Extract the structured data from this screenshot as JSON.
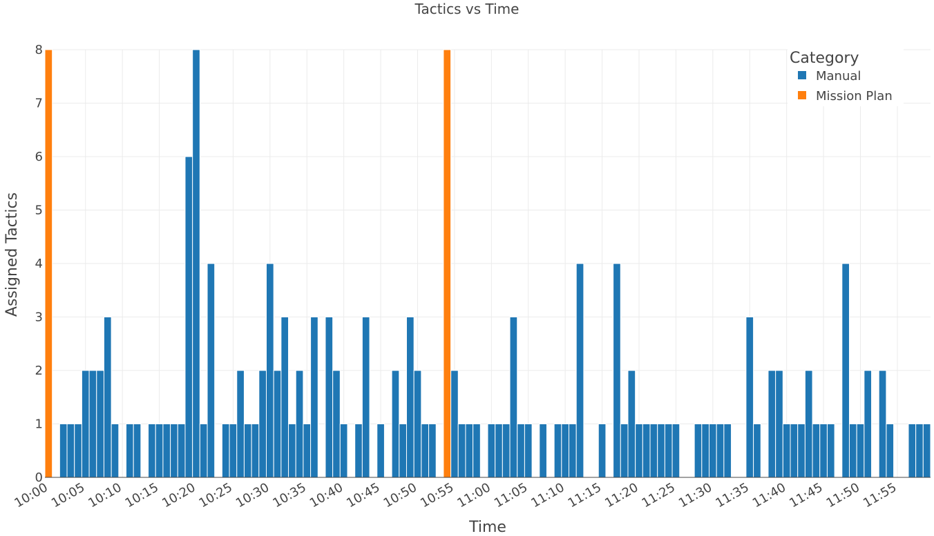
{
  "chart_data": {
    "type": "bar",
    "title": "Tactics vs Time",
    "xlabel": "Time",
    "ylabel": "Assigned Tactics",
    "ylim": [
      0,
      8
    ],
    "yticks": [
      0,
      1,
      2,
      3,
      4,
      5,
      6,
      7,
      8
    ],
    "xlim_minutes": [
      0,
      119
    ],
    "xticks": [
      "10:00",
      "10:05",
      "10:10",
      "10:15",
      "10:20",
      "10:25",
      "10:30",
      "10:35",
      "10:40",
      "10:45",
      "10:50",
      "10:55",
      "11:00",
      "11:05",
      "11:10",
      "11:15",
      "11:20",
      "11:25",
      "11:30",
      "11:35",
      "11:40",
      "11:45",
      "11:50",
      "11:55"
    ],
    "grid": true,
    "legend": {
      "title": "Category",
      "placement": "top-right",
      "entries": [
        {
          "name": "Manual",
          "color": "#1f77b4"
        },
        {
          "name": "Mission Plan",
          "color": "#ff7f0e"
        }
      ]
    },
    "series": [
      {
        "name": "Manual",
        "color": "#1f77b4",
        "points": [
          [
            "10:02",
            1
          ],
          [
            "10:03",
            1
          ],
          [
            "10:04",
            1
          ],
          [
            "10:05",
            2
          ],
          [
            "10:06",
            2
          ],
          [
            "10:07",
            2
          ],
          [
            "10:08",
            3
          ],
          [
            "10:09",
            1
          ],
          [
            "10:11",
            1
          ],
          [
            "10:12",
            1
          ],
          [
            "10:14",
            1
          ],
          [
            "10:15",
            1
          ],
          [
            "10:16",
            1
          ],
          [
            "10:17",
            1
          ],
          [
            "10:18",
            1
          ],
          [
            "10:19",
            6
          ],
          [
            "10:20",
            8
          ],
          [
            "10:21",
            1
          ],
          [
            "10:22",
            4
          ],
          [
            "10:24",
            1
          ],
          [
            "10:25",
            1
          ],
          [
            "10:26",
            2
          ],
          [
            "10:27",
            1
          ],
          [
            "10:28",
            1
          ],
          [
            "10:29",
            2
          ],
          [
            "10:30",
            4
          ],
          [
            "10:31",
            2
          ],
          [
            "10:32",
            3
          ],
          [
            "10:33",
            1
          ],
          [
            "10:34",
            2
          ],
          [
            "10:35",
            1
          ],
          [
            "10:36",
            3
          ],
          [
            "10:38",
            3
          ],
          [
            "10:39",
            2
          ],
          [
            "10:40",
            1
          ],
          [
            "10:42",
            1
          ],
          [
            "10:43",
            3
          ],
          [
            "10:45",
            1
          ],
          [
            "10:47",
            2
          ],
          [
            "10:48",
            1
          ],
          [
            "10:49",
            3
          ],
          [
            "10:50",
            2
          ],
          [
            "10:51",
            1
          ],
          [
            "10:52",
            1
          ],
          [
            "10:55",
            2
          ],
          [
            "10:56",
            1
          ],
          [
            "10:57",
            1
          ],
          [
            "10:58",
            1
          ],
          [
            "11:00",
            1
          ],
          [
            "11:01",
            1
          ],
          [
            "11:02",
            1
          ],
          [
            "11:03",
            3
          ],
          [
            "11:04",
            1
          ],
          [
            "11:05",
            1
          ],
          [
            "11:07",
            1
          ],
          [
            "11:09",
            1
          ],
          [
            "11:10",
            1
          ],
          [
            "11:11",
            1
          ],
          [
            "11:12",
            4
          ],
          [
            "11:15",
            1
          ],
          [
            "11:17",
            4
          ],
          [
            "11:18",
            1
          ],
          [
            "11:19",
            2
          ],
          [
            "11:20",
            1
          ],
          [
            "11:21",
            1
          ],
          [
            "11:22",
            1
          ],
          [
            "11:23",
            1
          ],
          [
            "11:24",
            1
          ],
          [
            "11:25",
            1
          ],
          [
            "11:28",
            1
          ],
          [
            "11:29",
            1
          ],
          [
            "11:30",
            1
          ],
          [
            "11:31",
            1
          ],
          [
            "11:32",
            1
          ],
          [
            "11:35",
            3
          ],
          [
            "11:36",
            1
          ],
          [
            "11:38",
            2
          ],
          [
            "11:39",
            2
          ],
          [
            "11:40",
            1
          ],
          [
            "11:41",
            1
          ],
          [
            "11:42",
            1
          ],
          [
            "11:43",
            2
          ],
          [
            "11:44",
            1
          ],
          [
            "11:45",
            1
          ],
          [
            "11:46",
            1
          ],
          [
            "11:48",
            4
          ],
          [
            "11:49",
            1
          ],
          [
            "11:50",
            1
          ],
          [
            "11:51",
            2
          ],
          [
            "11:53",
            2
          ],
          [
            "11:54",
            1
          ],
          [
            "11:57",
            1
          ],
          [
            "11:58",
            1
          ],
          [
            "11:59",
            1
          ]
        ]
      },
      {
        "name": "Mission Plan",
        "color": "#ff7f0e",
        "points": [
          [
            "10:00",
            8
          ],
          [
            "10:54",
            8
          ]
        ]
      }
    ]
  }
}
